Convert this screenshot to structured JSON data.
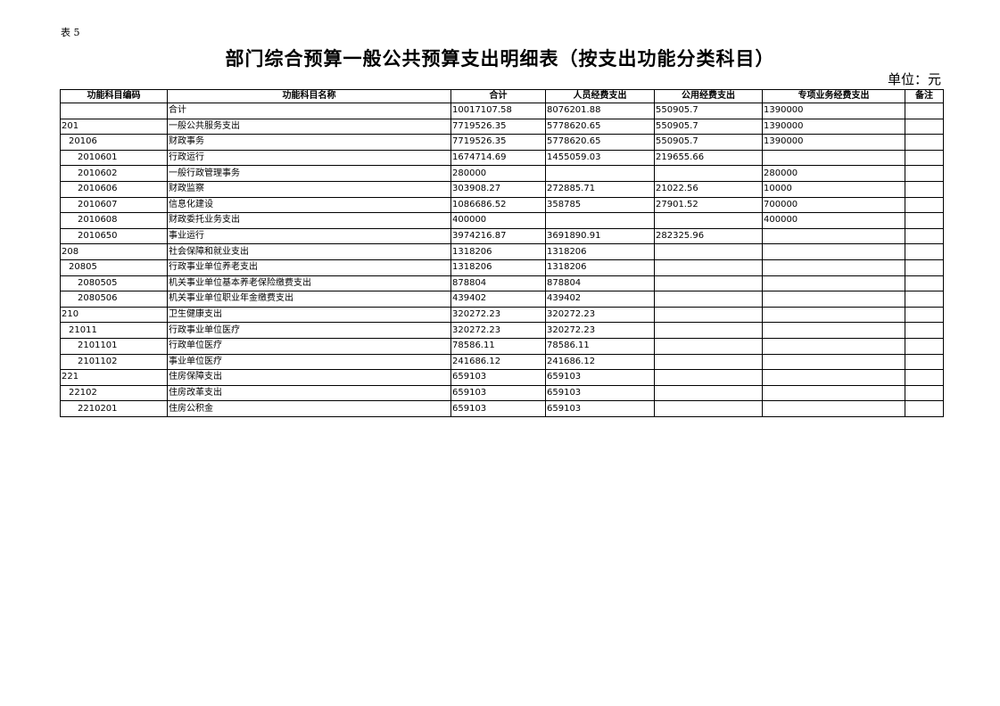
{
  "tag": "表 5",
  "title": "部门综合预算一般公共预算支出明细表（按支出功能分类科目）",
  "unit": "单位：元",
  "columns": [
    "功能科目编码",
    "功能科目名称",
    "合计",
    "人员经费支出",
    "公用经费支出",
    "专项业务经费支出",
    "备注"
  ],
  "rows": [
    {
      "level": 1,
      "cells": [
        "",
        "合计",
        "10017107.58",
        "8076201.88",
        "550905.7",
        "1390000",
        ""
      ]
    },
    {
      "level": 1,
      "cells": [
        "201",
        "一般公共服务支出",
        "7719526.35",
        "5778620.65",
        "550905.7",
        "1390000",
        ""
      ]
    },
    {
      "level": 2,
      "cells": [
        "20106",
        "财政事务",
        "7719526.35",
        "5778620.65",
        "550905.7",
        "1390000",
        ""
      ]
    },
    {
      "level": 3,
      "cells": [
        "2010601",
        "行政运行",
        "1674714.69",
        "1455059.03",
        "219655.66",
        "",
        ""
      ]
    },
    {
      "level": 3,
      "cells": [
        "2010602",
        "一般行政管理事务",
        "280000",
        "",
        "",
        "280000",
        ""
      ]
    },
    {
      "level": 3,
      "cells": [
        "2010606",
        "财政监察",
        "303908.27",
        "272885.71",
        "21022.56",
        "10000",
        ""
      ]
    },
    {
      "level": 3,
      "cells": [
        "2010607",
        "信息化建设",
        "1086686.52",
        "358785",
        "27901.52",
        "700000",
        ""
      ]
    },
    {
      "level": 3,
      "cells": [
        "2010608",
        "财政委托业务支出",
        "400000",
        "",
        "",
        "400000",
        ""
      ]
    },
    {
      "level": 3,
      "cells": [
        "2010650",
        "事业运行",
        "3974216.87",
        "3691890.91",
        "282325.96",
        "",
        ""
      ]
    },
    {
      "level": 1,
      "cells": [
        "208",
        "社会保障和就业支出",
        "1318206",
        "1318206",
        "",
        "",
        ""
      ]
    },
    {
      "level": 2,
      "cells": [
        "20805",
        "行政事业单位养老支出",
        "1318206",
        "1318206",
        "",
        "",
        ""
      ]
    },
    {
      "level": 3,
      "cells": [
        "2080505",
        "机关事业单位基本养老保险缴费支出",
        "878804",
        "878804",
        "",
        "",
        ""
      ]
    },
    {
      "level": 3,
      "cells": [
        "2080506",
        "机关事业单位职业年金缴费支出",
        "439402",
        "439402",
        "",
        "",
        ""
      ]
    },
    {
      "level": 1,
      "cells": [
        "210",
        "卫生健康支出",
        "320272.23",
        "320272.23",
        "",
        "",
        ""
      ]
    },
    {
      "level": 2,
      "cells": [
        "21011",
        "行政事业单位医疗",
        "320272.23",
        "320272.23",
        "",
        "",
        ""
      ]
    },
    {
      "level": 3,
      "cells": [
        "2101101",
        "行政单位医疗",
        "78586.11",
        "78586.11",
        "",
        "",
        ""
      ]
    },
    {
      "level": 3,
      "cells": [
        "2101102",
        "事业单位医疗",
        "241686.12",
        "241686.12",
        "",
        "",
        ""
      ]
    },
    {
      "level": 1,
      "cells": [
        "221",
        "住房保障支出",
        "659103",
        "659103",
        "",
        "",
        ""
      ]
    },
    {
      "level": 2,
      "cells": [
        "22102",
        "住房改革支出",
        "659103",
        "659103",
        "",
        "",
        ""
      ]
    },
    {
      "level": 3,
      "cells": [
        "2210201",
        "住房公积金",
        "659103",
        "659103",
        "",
        "",
        ""
      ]
    }
  ]
}
